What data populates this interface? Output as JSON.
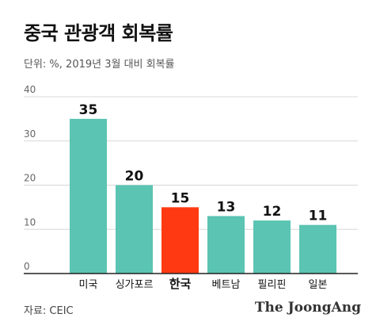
{
  "header": {
    "title": "중국 관광객 회복률",
    "subtitle": "단위: %, 2019년 3월 대비 회복률"
  },
  "footer": {
    "source": "자료: CEIC",
    "logo": "The JoongAng"
  },
  "colors": {
    "default_bar": "#5bc4b2",
    "highlight_bar": "#ff3a12",
    "grid": "#d8d8d8",
    "axis": "#222222"
  },
  "chart_data": {
    "type": "bar",
    "categories": [
      "미국",
      "싱가포르",
      "한국",
      "베트남",
      "필리핀",
      "일본"
    ],
    "values": [
      35,
      20,
      15,
      13,
      12,
      11
    ],
    "highlight_category": "한국",
    "ylim": [
      0,
      40
    ],
    "yticks": [
      0,
      10,
      20,
      30,
      40
    ],
    "grid": true,
    "data_labels": true,
    "title": "중국 관광객 회복률",
    "xlabel": "",
    "ylabel": ""
  }
}
